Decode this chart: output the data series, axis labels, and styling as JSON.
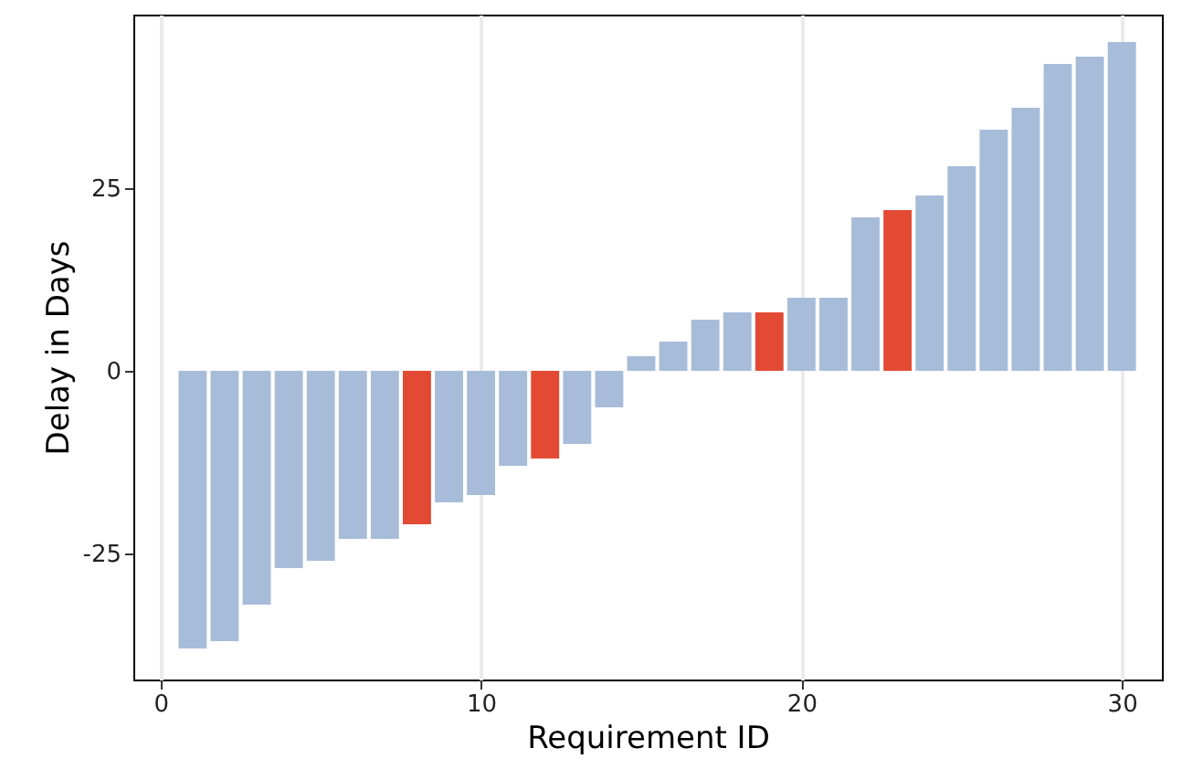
{
  "chart_data": {
    "type": "bar",
    "xlabel": "Requirement ID",
    "ylabel": "Delay in Days",
    "x": [
      1,
      2,
      3,
      4,
      5,
      6,
      7,
      8,
      9,
      10,
      11,
      12,
      13,
      14,
      15,
      16,
      17,
      18,
      19,
      20,
      21,
      22,
      23,
      24,
      25,
      26,
      27,
      28,
      29,
      30
    ],
    "values": [
      -38,
      -37,
      -32,
      -27,
      -26,
      -23,
      -23,
      -21,
      -18,
      -17,
      -13,
      -12,
      -10,
      -5,
      2,
      4,
      7,
      8,
      8,
      10,
      10,
      21,
      22,
      24,
      28,
      33,
      36,
      42,
      43,
      45
    ],
    "colors": [
      "#a7bcd9",
      "#a7bcd9",
      "#a7bcd9",
      "#a7bcd9",
      "#a7bcd9",
      "#a7bcd9",
      "#a7bcd9",
      "#e34a33",
      "#a7bcd9",
      "#a7bcd9",
      "#a7bcd9",
      "#e34a33",
      "#a7bcd9",
      "#a7bcd9",
      "#a7bcd9",
      "#a7bcd9",
      "#a7bcd9",
      "#a7bcd9",
      "#e34a33",
      "#a7bcd9",
      "#a7bcd9",
      "#a7bcd9",
      "#e34a33",
      "#a7bcd9",
      "#a7bcd9",
      "#a7bcd9",
      "#a7bcd9",
      "#a7bcd9",
      "#a7bcd9",
      "#a7bcd9"
    ],
    "xlim": [
      -0.85,
      31.25
    ],
    "xticks": [
      0,
      10,
      20,
      30
    ],
    "ylim": [
      -42.25,
      48.75
    ],
    "yticks": [
      {
        "value": -25,
        "label": "-25"
      },
      0,
      25
    ],
    "grid": "x"
  }
}
